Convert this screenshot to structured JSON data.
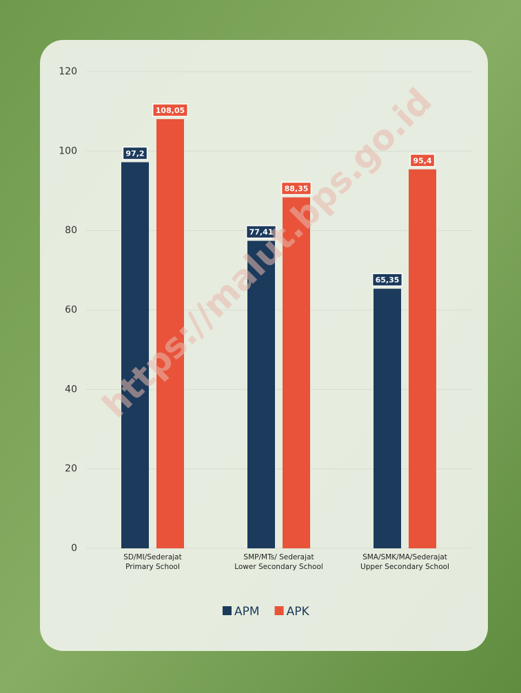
{
  "chart_data": {
    "type": "bar",
    "watermark": "https://malut.bps.go.id",
    "categories": [
      [
        "SD/MI/Sederajat",
        "Primary School"
      ],
      [
        "SMP/MTs/ Sederajat",
        "Lower Secondary School"
      ],
      [
        "SMA/SMK/MA/Sederajat",
        "Upper Secondary School"
      ]
    ],
    "series": [
      {
        "name": "APM",
        "color": "#1b3a5c",
        "values": [
          97.2,
          77.41,
          65.35
        ],
        "value_labels": [
          "97,2",
          "77,41",
          "65,35"
        ]
      },
      {
        "name": "APK",
        "color": "#e8533a",
        "values": [
          108.05,
          88.35,
          95.4
        ],
        "value_labels": [
          "108,05",
          "88,35",
          "95,4"
        ]
      }
    ],
    "ylim": [
      0,
      120
    ],
    "yticks": [
      0,
      20,
      40,
      60,
      80,
      100,
      120
    ],
    "grid": true,
    "legend": "bottom"
  }
}
